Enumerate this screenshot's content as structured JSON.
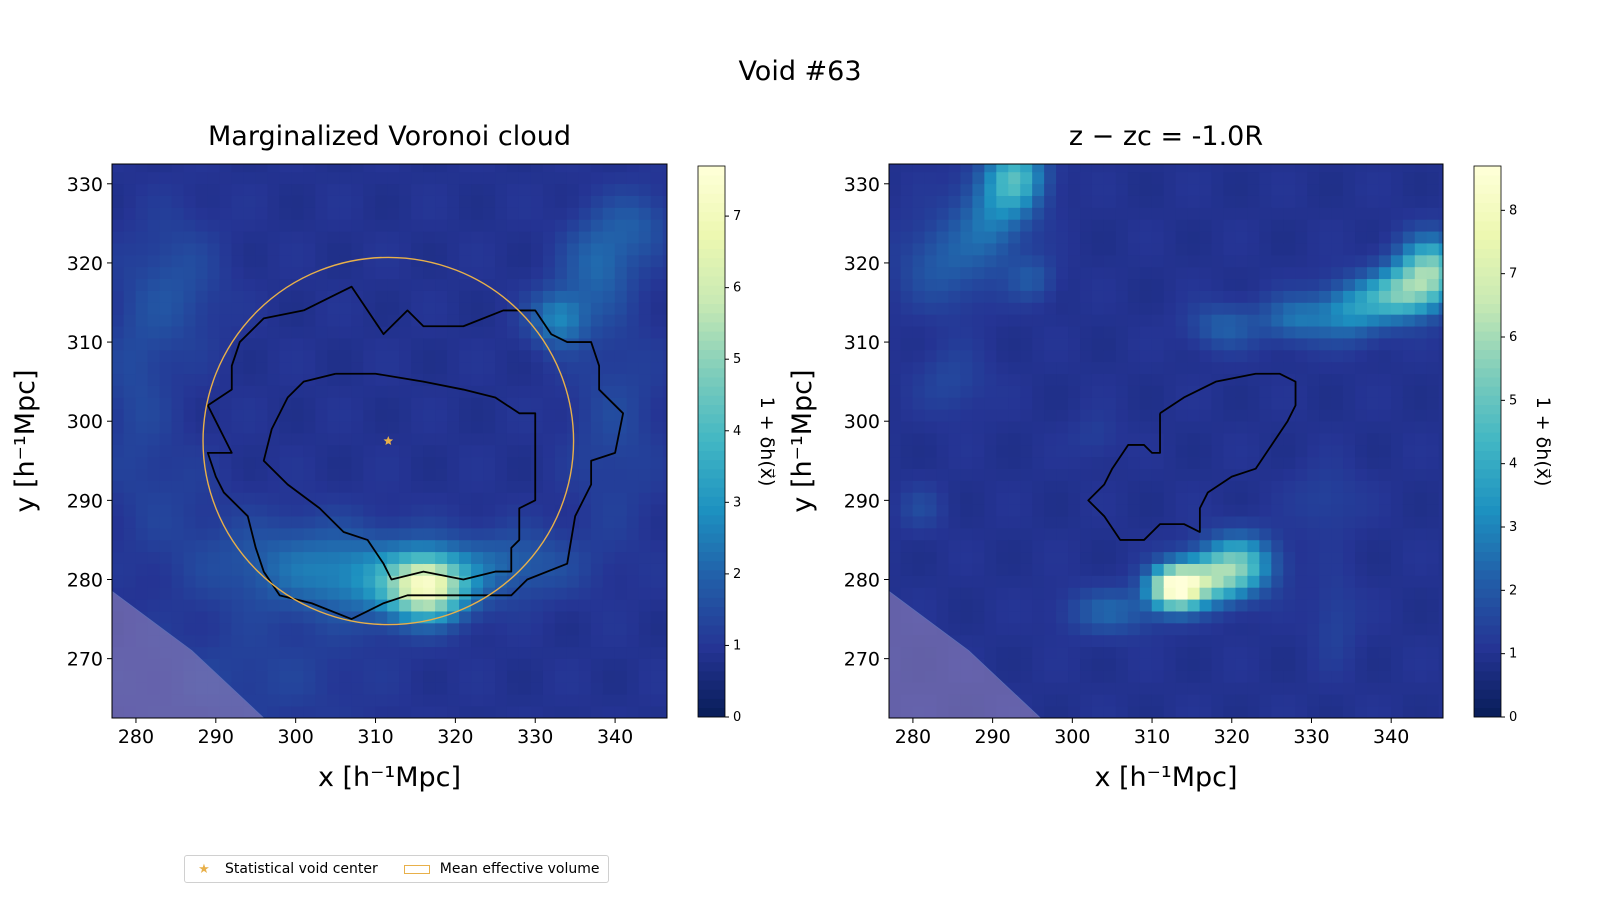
{
  "suptitle": "Void #63",
  "colors": {
    "colormap": [
      "#081d58",
      "#253494",
      "#225ea8",
      "#1d91c0",
      "#41b6c4",
      "#7fcdbb",
      "#c7e9b4",
      "#edf8b1",
      "#ffffd9"
    ],
    "center_marker": "#e8b04a",
    "volume_circle": "#e8b04a",
    "contour": "#000000",
    "mask": "#9a88c0"
  },
  "legend": {
    "items": [
      {
        "label": "Statistical void center",
        "marker": "star"
      },
      {
        "label": "Mean effective volume",
        "marker": "rectangle"
      }
    ]
  },
  "chart_data": [
    {
      "type": "heatmap",
      "title": "Marginalized Voronoi cloud",
      "xlabel": "x [h⁻¹Mpc]",
      "ylabel": "y [h⁻¹Mpc]",
      "xlim": [
        277,
        346.5
      ],
      "ylim": [
        262.5,
        332.5
      ],
      "xticks": [
        280,
        290,
        300,
        310,
        320,
        330,
        340
      ],
      "yticks": [
        270,
        280,
        290,
        300,
        310,
        320,
        330
      ],
      "colorbar": {
        "label": "1 + δh(x⃗)",
        "min": 0,
        "max": 7.7,
        "ticks": [
          0,
          1,
          2,
          3,
          4,
          5,
          6,
          7
        ]
      },
      "void_center": [
        311.6,
        297.5
      ],
      "mean_effective_volume_circle": {
        "center": [
          311.6,
          297.5
        ],
        "radius": 23.2
      },
      "contours": [
        [
          [
            301,
            314
          ],
          [
            305,
            316
          ],
          [
            307,
            317
          ],
          [
            311,
            311
          ],
          [
            314,
            314
          ],
          [
            316,
            312
          ],
          [
            321,
            312
          ],
          [
            326,
            314
          ],
          [
            330,
            314
          ],
          [
            332,
            311
          ],
          [
            334,
            310
          ],
          [
            337,
            310
          ],
          [
            338,
            307
          ],
          [
            338,
            304
          ],
          [
            341,
            301
          ],
          [
            340,
            296
          ],
          [
            337,
            295
          ],
          [
            337,
            292
          ],
          [
            335,
            288
          ],
          [
            334,
            282
          ],
          [
            329,
            280
          ],
          [
            327,
            278
          ],
          [
            319,
            278
          ],
          [
            314,
            278
          ],
          [
            311,
            277
          ],
          [
            307,
            275
          ],
          [
            302,
            277
          ],
          [
            298,
            278
          ],
          [
            296,
            281
          ],
          [
            295,
            284
          ],
          [
            294,
            288
          ],
          [
            291,
            291
          ],
          [
            290,
            293
          ],
          [
            289,
            296
          ],
          [
            292,
            296
          ],
          [
            290,
            300
          ],
          [
            289,
            302
          ],
          [
            292,
            304
          ],
          [
            292,
            307
          ],
          [
            293,
            310
          ],
          [
            296,
            313
          ],
          [
            301,
            314
          ]
        ],
        [
          [
            305,
            306
          ],
          [
            310,
            306
          ],
          [
            316,
            305
          ],
          [
            321,
            304
          ],
          [
            325,
            303
          ],
          [
            328,
            301
          ],
          [
            330,
            301
          ],
          [
            330,
            295
          ],
          [
            330,
            290
          ],
          [
            328,
            289
          ],
          [
            328,
            285
          ],
          [
            327,
            284
          ],
          [
            327,
            281
          ],
          [
            325,
            281
          ],
          [
            321,
            280
          ],
          [
            316,
            281
          ],
          [
            312,
            280
          ],
          [
            311,
            282
          ],
          [
            309,
            285
          ],
          [
            306,
            286
          ],
          [
            303,
            289
          ],
          [
            299,
            292
          ],
          [
            296,
            295
          ],
          [
            297,
            299
          ],
          [
            299,
            303
          ],
          [
            301,
            305
          ],
          [
            305,
            306
          ]
        ]
      ]
    },
    {
      "type": "heatmap",
      "title": "z − zc = -1.0R",
      "xlabel": "x [h⁻¹Mpc]",
      "ylabel": "y [h⁻¹Mpc]",
      "xlim": [
        277,
        346.5
      ],
      "ylim": [
        262.5,
        332.5
      ],
      "xticks": [
        280,
        290,
        300,
        310,
        320,
        330,
        340
      ],
      "yticks": [
        270,
        280,
        290,
        300,
        310,
        320,
        330
      ],
      "colorbar": {
        "label": "1 + δh(x⃗)",
        "min": 0,
        "max": 8.7,
        "ticks": [
          0,
          1,
          2,
          3,
          4,
          5,
          6,
          7,
          8
        ]
      },
      "contours": [
        [
          [
            311,
            301
          ],
          [
            314,
            303
          ],
          [
            318,
            305
          ],
          [
            323,
            306
          ],
          [
            326,
            306
          ],
          [
            328,
            305
          ],
          [
            328,
            302
          ],
          [
            327,
            300
          ],
          [
            325,
            297
          ],
          [
            323,
            294
          ],
          [
            320,
            293
          ],
          [
            317,
            291
          ],
          [
            316,
            289
          ],
          [
            316,
            286
          ],
          [
            314,
            287
          ],
          [
            311,
            287
          ],
          [
            309,
            285
          ],
          [
            306,
            285
          ],
          [
            304,
            288
          ],
          [
            302,
            290
          ],
          [
            304,
            292
          ],
          [
            305,
            294
          ],
          [
            307,
            297
          ],
          [
            309,
            297
          ],
          [
            310,
            296
          ],
          [
            311,
            296
          ],
          [
            311,
            301
          ]
        ]
      ]
    }
  ]
}
